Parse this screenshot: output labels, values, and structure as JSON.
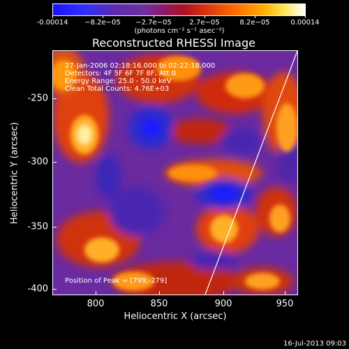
{
  "colorbar": {
    "labels": [
      "-0.00014",
      "−8.2e−05",
      "−2.7e−05",
      "2.7e−05",
      "8.2e−05",
      "0.00014"
    ],
    "units": "(photons cm⁻² s⁻¹ asec⁻²)"
  },
  "title": "Reconstructed RHESSI Image",
  "info": {
    "time": "27-Jan-2006 02:18:16.000 to 02:22:18.000",
    "detectors": "Detectors: 4F 5F 6F 7F 8F, Att 0",
    "energy": "Energy Range: 25.0 - 50.0 keV",
    "method": "Clean    Total Counts: 4.76E+03",
    "peak": "Position of Peak = [799,-279]"
  },
  "axes": {
    "xlabel": "Heliocentric X (arcsec)",
    "ylabel": "Heliocentric Y (arcsec)",
    "xticks": [
      "800",
      "850",
      "900",
      "950"
    ],
    "yticks": [
      "-250",
      "-300",
      "-350",
      "-400"
    ]
  },
  "timestamp": "16-Jul-2013 09:03",
  "colors": {
    "low": "#1a10ff",
    "mid": "#7030a0",
    "high": "#ff6a00",
    "peak": "#ffffff"
  }
}
